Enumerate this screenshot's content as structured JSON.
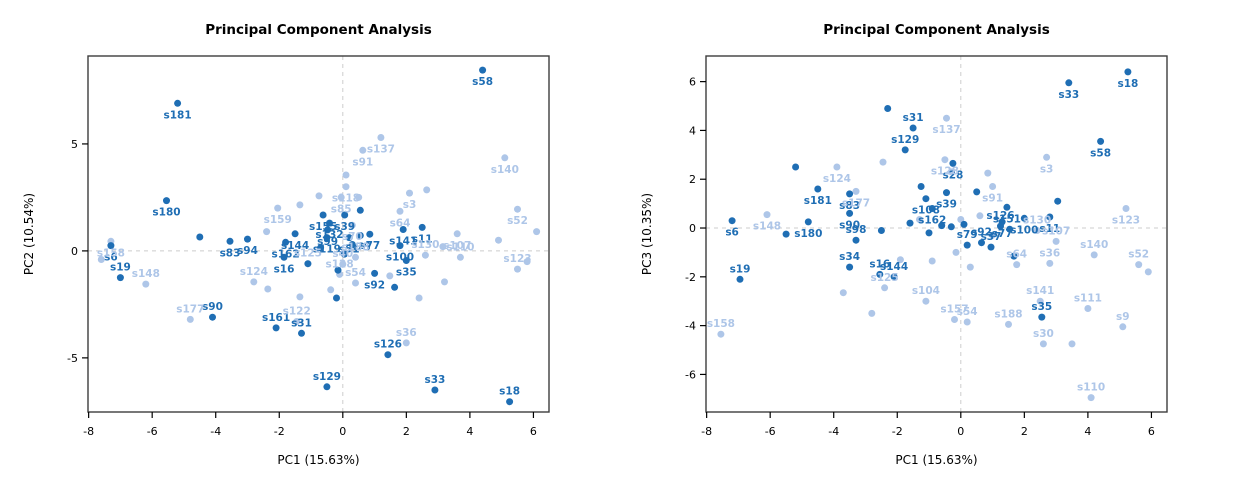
{
  "page": {
    "background": "#ffffff"
  },
  "colors": {
    "dark": "#1f6eb4",
    "light": "#aec6e8",
    "grid": "#cccccc",
    "box": "#3d3d3d",
    "text": "#000000"
  },
  "chart_data": [
    {
      "type": "scatter",
      "title": "Principal Component Analysis",
      "xlabel": "PC1 (15.63%)",
      "ylabel": "PC2 (10.54%)",
      "xlim": [
        -8.02,
        6.49
      ],
      "ylim": [
        -7.53,
        9.11
      ],
      "xticks": [
        -8,
        -6,
        -4,
        -2,
        0,
        2,
        4,
        6
      ],
      "yticks": [
        5,
        0,
        -5
      ],
      "grid": "dashed zero lines only",
      "legend": "none",
      "series_names": {
        "d": "dark-blue group",
        "l": "light-blue group"
      },
      "points": [
        [
          "s58",
          4.4,
          8.45,
          "d",
          "b"
        ],
        [
          "s181",
          -5.2,
          6.9,
          "d",
          "b"
        ],
        [
          "s180",
          -5.55,
          2.35,
          "d",
          "b"
        ],
        [
          "s83",
          -3.55,
          0.45,
          "d",
          "b"
        ],
        [
          "s94",
          -3.0,
          0.55,
          "d",
          "b"
        ],
        [
          "s6",
          -7.3,
          0.25,
          "d",
          "b"
        ],
        [
          "s19",
          -7.0,
          -1.25,
          "d",
          "a"
        ],
        [
          "s90",
          -4.1,
          -3.1,
          "d",
          "a"
        ],
        [
          "s161",
          -2.1,
          -3.6,
          "d",
          "a"
        ],
        [
          "s31",
          -1.3,
          -3.85,
          "d",
          "a"
        ],
        [
          "s126",
          1.42,
          -4.85,
          "d",
          "a"
        ],
        [
          "s129",
          -0.5,
          -6.35,
          "d",
          "a"
        ],
        [
          "s33",
          2.9,
          -6.5,
          "d",
          "a"
        ],
        [
          "s18",
          5.25,
          -7.05,
          "d",
          "a"
        ],
        [
          "s155",
          -0.62,
          1.68,
          "d",
          "b"
        ],
        [
          "s132",
          -0.42,
          1.3,
          "d",
          "b"
        ],
        [
          "s99",
          -0.48,
          0.98,
          "d",
          "b"
        ],
        [
          "s39",
          0.06,
          1.68,
          "d",
          "b"
        ],
        [
          "s144",
          -1.5,
          0.8,
          "d",
          "b"
        ],
        [
          "s119",
          -0.5,
          0.62,
          "d",
          "b"
        ],
        [
          "s51",
          0.2,
          0.62,
          "d",
          "b"
        ],
        [
          "s77",
          0.85,
          0.78,
          "d",
          "b"
        ],
        [
          "s75",
          0.55,
          0.72,
          "d",
          "b"
        ],
        [
          "s162",
          -1.8,
          0.4,
          "d",
          "b"
        ],
        [
          "s16",
          -1.85,
          -0.3,
          "d",
          "b"
        ],
        [
          "s100",
          1.8,
          0.25,
          "d",
          "b"
        ],
        [
          "s11",
          2.5,
          1.1,
          "d",
          "b"
        ],
        [
          "s141",
          1.9,
          1.0,
          "d",
          "b"
        ],
        [
          "s35",
          2.0,
          -0.45,
          "d",
          "b"
        ],
        [
          "s92",
          1.0,
          -1.05,
          "d",
          "b"
        ],
        [
          "",
          -4.5,
          0.65,
          "d",
          ""
        ],
        [
          "",
          0.55,
          1.9,
          "d",
          ""
        ],
        [
          "",
          1.63,
          -1.7,
          "d",
          ""
        ],
        [
          "",
          -0.2,
          -2.2,
          "d",
          ""
        ],
        [
          "",
          0.3,
          0.3,
          "d",
          ""
        ],
        [
          "",
          -0.7,
          0.15,
          "d",
          ""
        ],
        [
          "",
          -1.1,
          -0.6,
          "d",
          ""
        ],
        [
          "",
          -0.15,
          -0.9,
          "d",
          ""
        ],
        [
          "",
          0.05,
          -0.15,
          "d",
          ""
        ],
        [
          "s158",
          -7.3,
          0.45,
          "l",
          "b"
        ],
        [
          "s148",
          -6.2,
          -1.55,
          "l",
          "a"
        ],
        [
          "s177",
          -4.8,
          -3.2,
          "l",
          "a"
        ],
        [
          "s124",
          -2.8,
          -1.45,
          "l",
          "a"
        ],
        [
          "s122",
          -1.45,
          -3.3,
          "l",
          "a"
        ],
        [
          "s36",
          2.0,
          -4.3,
          "l",
          "a"
        ],
        [
          "s159",
          -2.05,
          2.0,
          "l",
          "b"
        ],
        [
          "s137",
          1.2,
          5.3,
          "l",
          "b"
        ],
        [
          "s91",
          0.63,
          4.7,
          "l",
          "b"
        ],
        [
          "s140",
          5.1,
          4.35,
          "l",
          "b"
        ],
        [
          "s52",
          5.5,
          1.95,
          "l",
          "b"
        ],
        [
          "s118",
          0.1,
          3.0,
          "l",
          "b"
        ],
        [
          "s85",
          -0.05,
          2.5,
          "l",
          "b"
        ],
        [
          "s3",
          2.1,
          2.7,
          "l",
          "b"
        ],
        [
          "s64",
          1.8,
          1.85,
          "l",
          "b"
        ],
        [
          "s107",
          3.6,
          0.8,
          "l",
          "b"
        ],
        [
          "s110",
          3.7,
          -0.3,
          "l",
          "a"
        ],
        [
          "s123",
          5.5,
          -0.85,
          "l",
          "a"
        ],
        [
          "s188",
          0.4,
          -0.3,
          "l",
          "a"
        ],
        [
          "s54",
          0.4,
          -1.5,
          "l",
          "a"
        ],
        [
          "s128",
          -0.1,
          -1.1,
          "l",
          "a"
        ],
        [
          "s125",
          -1.1,
          -0.6,
          "l",
          "a"
        ],
        [
          "s70",
          0.3,
          1.2,
          "l",
          "b"
        ],
        [
          "s130",
          2.6,
          -0.2,
          "l",
          "a"
        ],
        [
          "s40",
          0.0,
          -0.62,
          "l",
          "a"
        ],
        [
          "",
          -7.6,
          -0.4,
          "l",
          ""
        ],
        [
          "",
          -2.4,
          0.9,
          "l",
          ""
        ],
        [
          "",
          0.5,
          2.5,
          "l",
          ""
        ],
        [
          "",
          2.64,
          2.85,
          "l",
          ""
        ],
        [
          "",
          -0.75,
          2.57,
          "l",
          ""
        ],
        [
          "",
          3.15,
          0.2,
          "l",
          ""
        ],
        [
          "",
          4.9,
          0.5,
          "l",
          ""
        ],
        [
          "",
          6.1,
          0.9,
          "l",
          ""
        ],
        [
          "",
          5.8,
          -0.5,
          "l",
          ""
        ],
        [
          "",
          1.48,
          -1.17,
          "l",
          ""
        ],
        [
          "",
          2.4,
          -2.2,
          "l",
          ""
        ],
        [
          "",
          3.2,
          -1.45,
          "l",
          ""
        ],
        [
          "",
          -2.36,
          -1.78,
          "l",
          ""
        ],
        [
          "",
          -1.35,
          -2.15,
          "l",
          ""
        ],
        [
          "",
          -0.38,
          -1.82,
          "l",
          ""
        ],
        [
          "",
          0.1,
          3.55,
          "l",
          ""
        ],
        [
          "",
          -1.35,
          2.15,
          "l",
          ""
        ]
      ]
    },
    {
      "type": "scatter",
      "title": "Principal Component Analysis",
      "xlabel": "PC1 (15.63%)",
      "ylabel": "PC3 (10.35%)",
      "xlim": [
        -8.02,
        6.49
      ],
      "ylim": [
        -7.54,
        7.05
      ],
      "xticks": [
        -8,
        -6,
        -4,
        -2,
        0,
        2,
        4,
        6
      ],
      "yticks": [
        6,
        4,
        2,
        0,
        -2,
        -4,
        -6
      ],
      "grid": "dashed zero lines only",
      "legend": "none",
      "series_names": {
        "d": "dark-blue group",
        "l": "light-blue group"
      },
      "points": [
        [
          "s18",
          5.26,
          6.4,
          "d",
          "b"
        ],
        [
          "s33",
          3.4,
          5.95,
          "d",
          "b"
        ],
        [
          "s58",
          4.4,
          3.55,
          "d",
          "b"
        ],
        [
          "s31",
          -1.5,
          4.1,
          "d",
          "a"
        ],
        [
          "s129",
          -1.75,
          3.2,
          "d",
          "a"
        ],
        [
          "s28",
          -0.25,
          2.65,
          "d",
          "b"
        ],
        [
          "s181",
          -4.5,
          1.6,
          "d",
          "b"
        ],
        [
          "s83",
          -3.5,
          1.4,
          "d",
          "b"
        ],
        [
          "s39",
          -0.45,
          1.45,
          "d",
          "b"
        ],
        [
          "s108",
          -1.1,
          1.2,
          "d",
          "b"
        ],
        [
          "s162",
          -0.9,
          0.8,
          "d",
          "b"
        ],
        [
          "s151",
          1.45,
          0.85,
          "d",
          "b"
        ],
        [
          "s77",
          1.3,
          0.25,
          "d",
          "b"
        ],
        [
          "s100",
          2.0,
          0.4,
          "d",
          "b"
        ],
        [
          "s11",
          2.8,
          0.45,
          "d",
          "b"
        ],
        [
          "s126",
          1.25,
          0.08,
          "d",
          "a"
        ],
        [
          "s180",
          -4.8,
          0.25,
          "d",
          "b"
        ],
        [
          "s6",
          -7.2,
          0.3,
          "d",
          "b"
        ],
        [
          "s90",
          -3.5,
          0.6,
          "d",
          "b"
        ],
        [
          "s98",
          -3.3,
          -0.5,
          "d",
          "a"
        ],
        [
          "s79",
          0.2,
          -0.7,
          "d",
          "a"
        ],
        [
          "s92",
          0.65,
          -0.6,
          "d",
          "a"
        ],
        [
          "s37",
          0.95,
          -0.78,
          "d",
          "a"
        ],
        [
          "s34",
          -3.5,
          -1.6,
          "d",
          "a"
        ],
        [
          "s16",
          -2.55,
          -1.9,
          "d",
          "a"
        ],
        [
          "s144",
          -2.1,
          -2.0,
          "d",
          "a"
        ],
        [
          "s19",
          -6.95,
          -2.1,
          "d",
          "a"
        ],
        [
          "s35",
          2.55,
          -3.65,
          "d",
          "a"
        ],
        [
          "",
          -5.2,
          2.5,
          "d",
          ""
        ],
        [
          "",
          -5.5,
          -0.25,
          "d",
          ""
        ],
        [
          "",
          1.67,
          -1.15,
          "d",
          ""
        ],
        [
          "",
          -2.3,
          4.9,
          "d",
          ""
        ],
        [
          "",
          0.5,
          1.48,
          "d",
          ""
        ],
        [
          "",
          3.05,
          1.1,
          "d",
          ""
        ],
        [
          "",
          1.54,
          -0.05,
          "d",
          ""
        ],
        [
          "",
          -1.25,
          1.7,
          "d",
          ""
        ],
        [
          "",
          -0.6,
          0.1,
          "d",
          ""
        ],
        [
          "",
          -1.0,
          -0.2,
          "d",
          ""
        ],
        [
          "",
          -0.3,
          0.05,
          "d",
          ""
        ],
        [
          "",
          -1.6,
          0.2,
          "d",
          ""
        ],
        [
          "",
          0.1,
          0.15,
          "d",
          ""
        ],
        [
          "",
          -2.5,
          -0.1,
          "d",
          ""
        ],
        [
          "s3",
          2.7,
          2.9,
          "l",
          "b"
        ],
        [
          "s137",
          -0.45,
          4.5,
          "l",
          "b"
        ],
        [
          "s124",
          -3.9,
          2.5,
          "l",
          "b"
        ],
        [
          "s177",
          -3.3,
          1.5,
          "l",
          "b"
        ],
        [
          "s148",
          -6.1,
          0.55,
          "l",
          "b"
        ],
        [
          "s128",
          -0.5,
          2.8,
          "l",
          "b"
        ],
        [
          "s91",
          1.0,
          1.7,
          "l",
          "b"
        ],
        [
          "s123",
          5.2,
          0.8,
          "l",
          "b"
        ],
        [
          "s130",
          2.4,
          -0.1,
          "l",
          "a"
        ],
        [
          "s107",
          3.0,
          -0.55,
          "l",
          "a"
        ],
        [
          "s140",
          4.2,
          -1.1,
          "l",
          "a"
        ],
        [
          "s52",
          5.6,
          -1.5,
          "l",
          "a"
        ],
        [
          "s64",
          1.76,
          -1.5,
          "l",
          "a"
        ],
        [
          "s36",
          2.8,
          -1.45,
          "l",
          "a"
        ],
        [
          "s104",
          -1.1,
          -3.0,
          "l",
          "a"
        ],
        [
          "s125",
          -2.4,
          -2.45,
          "l",
          "a"
        ],
        [
          "s141",
          2.5,
          -3.0,
          "l",
          "a"
        ],
        [
          "s111",
          4.0,
          -3.3,
          "l",
          "a"
        ],
        [
          "s9",
          5.1,
          -4.05,
          "l",
          "a"
        ],
        [
          "s157",
          -0.2,
          -3.75,
          "l",
          "a"
        ],
        [
          "s54",
          0.2,
          -3.85,
          "l",
          "a"
        ],
        [
          "s188",
          1.5,
          -3.95,
          "l",
          "a"
        ],
        [
          "s30",
          2.6,
          -4.75,
          "l",
          "a"
        ],
        [
          "s110",
          4.1,
          -6.95,
          "l",
          "a"
        ],
        [
          "s158",
          -7.55,
          -4.35,
          "l",
          "a"
        ],
        [
          "",
          -2.45,
          2.7,
          "l",
          ""
        ],
        [
          "",
          0.85,
          2.25,
          "l",
          ""
        ],
        [
          "",
          -1.9,
          -1.3,
          "l",
          ""
        ],
        [
          "",
          -3.7,
          -2.65,
          "l",
          ""
        ],
        [
          "",
          -2.8,
          -3.5,
          "l",
          ""
        ],
        [
          "",
          5.9,
          -1.8,
          "l",
          ""
        ],
        [
          "",
          3.5,
          -4.75,
          "l",
          ""
        ],
        [
          "",
          -0.3,
          2.3,
          "l",
          ""
        ],
        [
          "",
          0.3,
          -1.6,
          "l",
          ""
        ],
        [
          "",
          -0.9,
          -1.35,
          "l",
          ""
        ],
        [
          "",
          0.0,
          0.35,
          "l",
          ""
        ],
        [
          "",
          0.6,
          0.5,
          "l",
          ""
        ],
        [
          "",
          -0.15,
          -1.0,
          "l",
          ""
        ],
        [
          "",
          1.0,
          -0.3,
          "l",
          ""
        ],
        [
          "",
          -1.3,
          0.35,
          "l",
          ""
        ]
      ]
    }
  ]
}
